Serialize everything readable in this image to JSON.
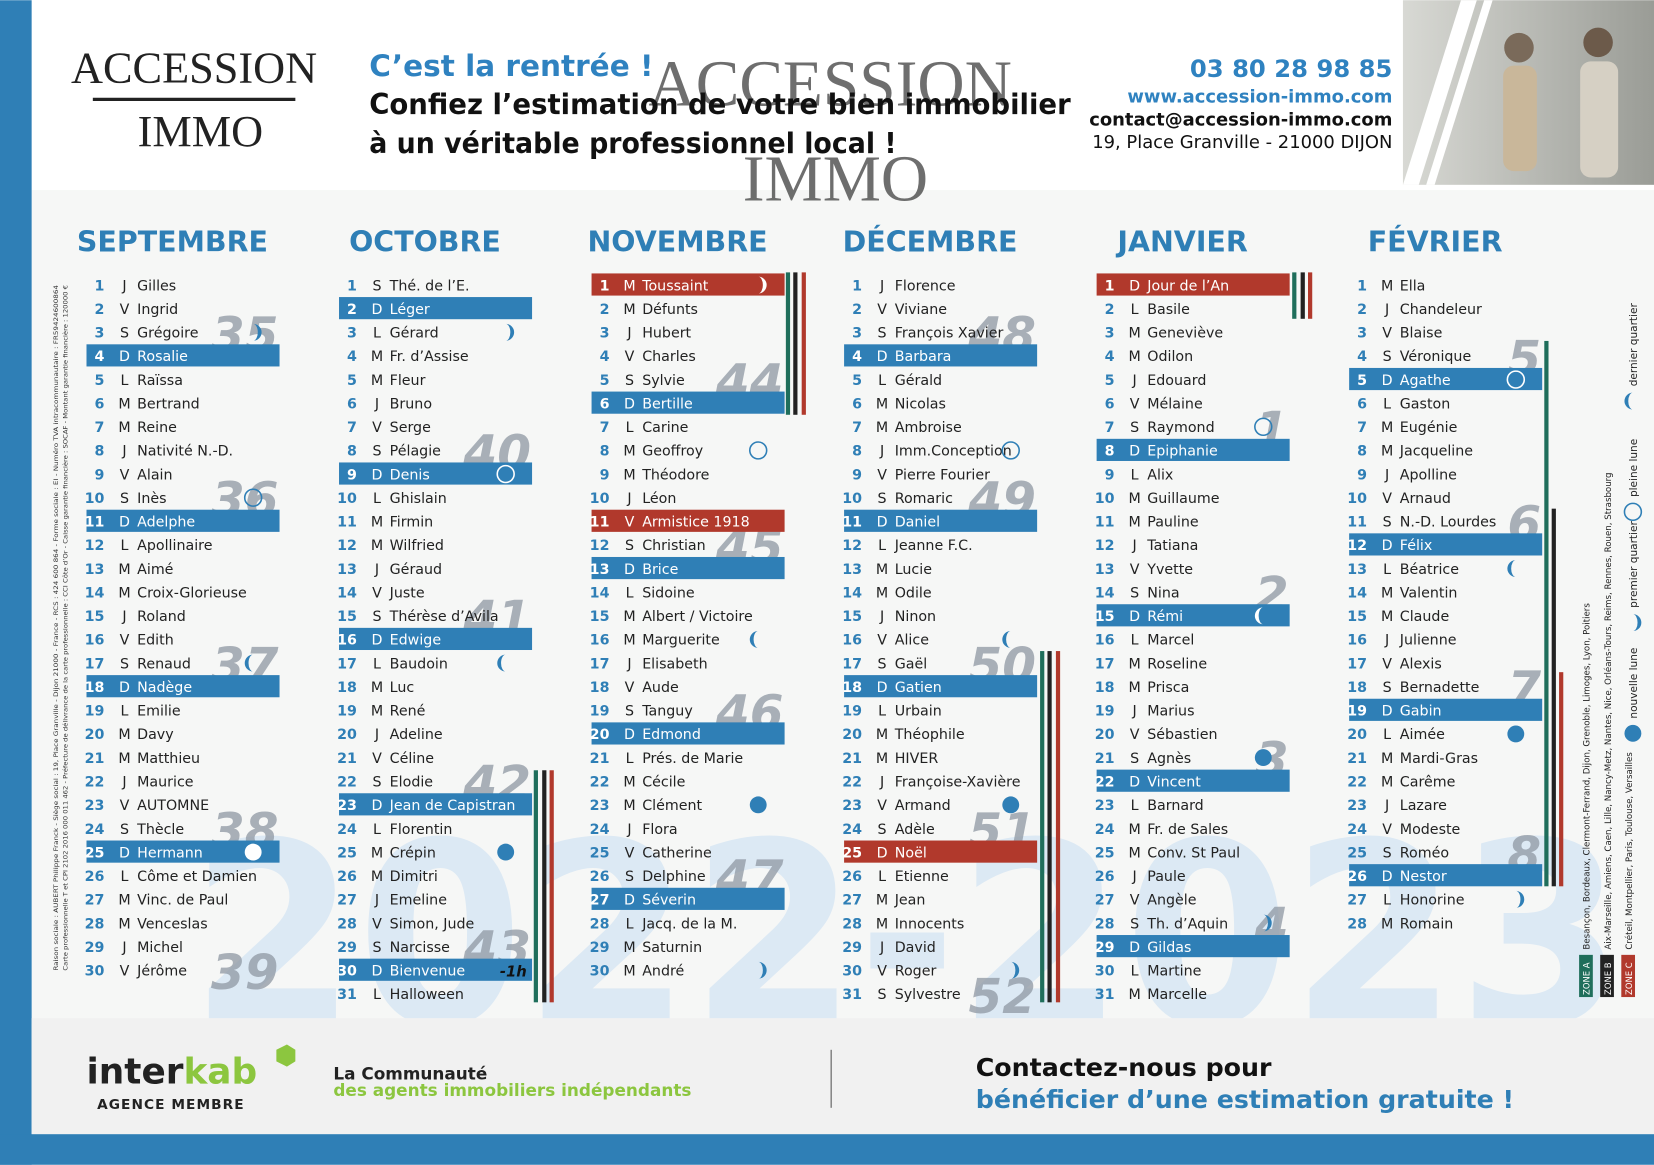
{
  "header": {
    "logo": [
      "ACCESSION",
      "IMMO"
    ],
    "headline": "C’est la rentrée !",
    "lines": [
      "Confiez l’estimation de votre bien immobilier",
      "à un véritable professionnel local !"
    ],
    "phone": "03 80 28 98 85",
    "website": "www.accession-immo.com",
    "email": "contact@accession-immo.com",
    "address": "19, Place Granville - 21000 DIJON"
  },
  "watermark": "2022-2023",
  "highlight_colors": {
    "sunday": "#2f7fb6",
    "holiday": "#b1392c"
  },
  "months": [
    {
      "name": "SEPTEMBRE",
      "weeks": [
        35,
        36,
        37,
        38,
        39
      ],
      "days": [
        [
          1,
          "J",
          "Gilles"
        ],
        [
          2,
          "V",
          "Ingrid"
        ],
        [
          3,
          "S",
          "Grégoire",
          null,
          "fq"
        ],
        [
          4,
          "D",
          "Rosalie"
        ],
        [
          5,
          "L",
          "Raïssa"
        ],
        [
          6,
          "M",
          "Bertrand"
        ],
        [
          7,
          "M",
          "Reine"
        ],
        [
          8,
          "J",
          "Nativité N.-D."
        ],
        [
          9,
          "V",
          "Alain"
        ],
        [
          10,
          "S",
          "Inès",
          null,
          "full"
        ],
        [
          11,
          "D",
          "Adelphe"
        ],
        [
          12,
          "L",
          "Apollinaire"
        ],
        [
          13,
          "M",
          "Aimé"
        ],
        [
          14,
          "M",
          "Croix-Glorieuse"
        ],
        [
          15,
          "J",
          "Roland"
        ],
        [
          16,
          "V",
          "Edith"
        ],
        [
          17,
          "S",
          "Renaud",
          null,
          "lq"
        ],
        [
          18,
          "D",
          "Nadège"
        ],
        [
          19,
          "L",
          "Emilie"
        ],
        [
          20,
          "M",
          "Davy"
        ],
        [
          21,
          "M",
          "Matthieu"
        ],
        [
          22,
          "J",
          "Maurice"
        ],
        [
          23,
          "V",
          "AUTOMNE"
        ],
        [
          24,
          "S",
          "Thècle"
        ],
        [
          25,
          "D",
          "Hermann",
          null,
          "new"
        ],
        [
          26,
          "L",
          "Côme et Damien"
        ],
        [
          27,
          "M",
          "Vinc. de Paul"
        ],
        [
          28,
          "M",
          "Venceslas"
        ],
        [
          29,
          "J",
          "Michel"
        ],
        [
          30,
          "V",
          "Jérôme"
        ]
      ]
    },
    {
      "name": "OCTOBRE",
      "weeks": [
        40,
        41,
        42,
        43
      ],
      "days": [
        [
          1,
          "S",
          "Thé. de l’E."
        ],
        [
          2,
          "D",
          "Léger"
        ],
        [
          3,
          "L",
          "Gérard",
          null,
          "fq"
        ],
        [
          4,
          "M",
          "Fr. d’Assise"
        ],
        [
          5,
          "M",
          "Fleur"
        ],
        [
          6,
          "J",
          "Bruno"
        ],
        [
          7,
          "V",
          "Serge"
        ],
        [
          8,
          "S",
          "Pélagie"
        ],
        [
          9,
          "D",
          "Denis",
          null,
          "full"
        ],
        [
          10,
          "L",
          "Ghislain"
        ],
        [
          11,
          "M",
          "Firmin"
        ],
        [
          12,
          "M",
          "Wilfried"
        ],
        [
          13,
          "J",
          "Géraud"
        ],
        [
          14,
          "V",
          "Juste"
        ],
        [
          15,
          "S",
          "Thérèse d’Avila"
        ],
        [
          16,
          "D",
          "Edwige"
        ],
        [
          17,
          "L",
          "Baudoin",
          null,
          "lq"
        ],
        [
          18,
          "M",
          "Luc"
        ],
        [
          19,
          "M",
          "René"
        ],
        [
          20,
          "J",
          "Adeline"
        ],
        [
          21,
          "V",
          "Céline"
        ],
        [
          22,
          "S",
          "Elodie"
        ],
        [
          23,
          "D",
          "Jean de Capistran"
        ],
        [
          24,
          "L",
          "Florentin"
        ],
        [
          25,
          "M",
          "Crépin",
          null,
          "new"
        ],
        [
          26,
          "M",
          "Dimitri"
        ],
        [
          27,
          "J",
          "Emeline"
        ],
        [
          28,
          "V",
          "Simon, Jude"
        ],
        [
          29,
          "S",
          "Narcisse"
        ],
        [
          30,
          "D",
          "Bienvenue",
          null,
          null,
          "-1h"
        ],
        [
          31,
          "L",
          "Halloween"
        ]
      ]
    },
    {
      "name": "NOVEMBRE",
      "weeks": [
        44,
        45,
        46,
        47
      ],
      "days": [
        [
          1,
          "M",
          "Toussaint",
          "holiday",
          "fq"
        ],
        [
          2,
          "M",
          "Défunts"
        ],
        [
          3,
          "J",
          "Hubert"
        ],
        [
          4,
          "V",
          "Charles"
        ],
        [
          5,
          "S",
          "Sylvie"
        ],
        [
          6,
          "D",
          "Bertille"
        ],
        [
          7,
          "L",
          "Carine"
        ],
        [
          8,
          "M",
          "Geoffroy",
          null,
          "full"
        ],
        [
          9,
          "M",
          "Théodore"
        ],
        [
          10,
          "J",
          "Léon"
        ],
        [
          11,
          "V",
          "Armistice 1918",
          "holiday"
        ],
        [
          12,
          "S",
          "Christian"
        ],
        [
          13,
          "D",
          "Brice"
        ],
        [
          14,
          "L",
          "Sidoine"
        ],
        [
          15,
          "M",
          "Albert / Victoire"
        ],
        [
          16,
          "M",
          "Marguerite",
          null,
          "lq"
        ],
        [
          17,
          "J",
          "Elisabeth"
        ],
        [
          18,
          "V",
          "Aude"
        ],
        [
          19,
          "S",
          "Tanguy"
        ],
        [
          20,
          "D",
          "Edmond"
        ],
        [
          21,
          "L",
          "Prés. de Marie"
        ],
        [
          22,
          "M",
          "Cécile"
        ],
        [
          23,
          "M",
          "Clément",
          null,
          "new"
        ],
        [
          24,
          "J",
          "Flora"
        ],
        [
          25,
          "V",
          "Catherine"
        ],
        [
          26,
          "S",
          "Delphine"
        ],
        [
          27,
          "D",
          "Séverin"
        ],
        [
          28,
          "L",
          "Jacq. de la M."
        ],
        [
          29,
          "M",
          "Saturnin"
        ],
        [
          30,
          "M",
          "André",
          null,
          "fq"
        ]
      ]
    },
    {
      "name": "DÉCEMBRE",
      "weeks": [
        48,
        49,
        50,
        51,
        52
      ],
      "days": [
        [
          1,
          "J",
          "Florence"
        ],
        [
          2,
          "V",
          "Viviane"
        ],
        [
          3,
          "S",
          "François Xavier"
        ],
        [
          4,
          "D",
          "Barbara"
        ],
        [
          5,
          "L",
          "Gérald"
        ],
        [
          6,
          "M",
          "Nicolas"
        ],
        [
          7,
          "M",
          "Ambroise"
        ],
        [
          8,
          "J",
          "Imm.Conception",
          null,
          "full"
        ],
        [
          9,
          "V",
          "Pierre Fourier"
        ],
        [
          10,
          "S",
          "Romaric"
        ],
        [
          11,
          "D",
          "Daniel"
        ],
        [
          12,
          "L",
          "Jeanne F.C."
        ],
        [
          13,
          "M",
          "Lucie"
        ],
        [
          14,
          "M",
          "Odile"
        ],
        [
          15,
          "J",
          "Ninon"
        ],
        [
          16,
          "V",
          "Alice",
          null,
          "lq"
        ],
        [
          17,
          "S",
          "Gaël"
        ],
        [
          18,
          "D",
          "Gatien"
        ],
        [
          19,
          "L",
          "Urbain"
        ],
        [
          20,
          "M",
          "Théophile"
        ],
        [
          21,
          "M",
          "HIVER"
        ],
        [
          22,
          "J",
          "Françoise-Xavière"
        ],
        [
          23,
          "V",
          "Armand",
          null,
          "new"
        ],
        [
          24,
          "S",
          "Adèle"
        ],
        [
          25,
          "D",
          "Noël",
          "holiday"
        ],
        [
          26,
          "L",
          "Etienne"
        ],
        [
          27,
          "M",
          "Jean"
        ],
        [
          28,
          "M",
          "Innocents"
        ],
        [
          29,
          "J",
          "David"
        ],
        [
          30,
          "V",
          "Roger",
          null,
          "fq"
        ],
        [
          31,
          "S",
          "Sylvestre"
        ]
      ]
    },
    {
      "name": "JANVIER",
      "weeks": [
        1,
        2,
        3,
        4
      ],
      "days": [
        [
          1,
          "D",
          "Jour de l’An",
          "holiday"
        ],
        [
          2,
          "L",
          "Basile"
        ],
        [
          3,
          "M",
          "Geneviève"
        ],
        [
          4,
          "M",
          "Odilon"
        ],
        [
          5,
          "J",
          "Edouard"
        ],
        [
          6,
          "V",
          "Mélaine"
        ],
        [
          7,
          "S",
          "Raymond",
          null,
          "full"
        ],
        [
          8,
          "D",
          "Epiphanie"
        ],
        [
          9,
          "L",
          "Alix"
        ],
        [
          10,
          "M",
          "Guillaume"
        ],
        [
          11,
          "M",
          "Pauline"
        ],
        [
          12,
          "J",
          "Tatiana"
        ],
        [
          13,
          "V",
          "Yvette"
        ],
        [
          14,
          "S",
          "Nina"
        ],
        [
          15,
          "D",
          "Rémi",
          null,
          "lq"
        ],
        [
          16,
          "L",
          "Marcel"
        ],
        [
          17,
          "M",
          "Roseline"
        ],
        [
          18,
          "M",
          "Prisca"
        ],
        [
          19,
          "J",
          "Marius"
        ],
        [
          20,
          "V",
          "Sébastien"
        ],
        [
          21,
          "S",
          "Agnès",
          null,
          "new"
        ],
        [
          22,
          "D",
          "Vincent"
        ],
        [
          23,
          "L",
          "Barnard"
        ],
        [
          24,
          "M",
          "Fr. de Sales"
        ],
        [
          25,
          "M",
          "Conv. St Paul"
        ],
        [
          26,
          "J",
          "Paule"
        ],
        [
          27,
          "V",
          "Angèle"
        ],
        [
          28,
          "S",
          "Th. d’Aquin",
          null,
          "fq"
        ],
        [
          29,
          "D",
          "Gildas"
        ],
        [
          30,
          "L",
          "Martine"
        ],
        [
          31,
          "M",
          "Marcelle"
        ]
      ]
    },
    {
      "name": "FÉVRIER",
      "weeks": [
        5,
        6,
        7,
        8
      ],
      "days": [
        [
          1,
          "M",
          "Ella"
        ],
        [
          2,
          "J",
          "Chandeleur"
        ],
        [
          3,
          "V",
          "Blaise"
        ],
        [
          4,
          "S",
          "Véronique"
        ],
        [
          5,
          "D",
          "Agathe",
          null,
          "full"
        ],
        [
          6,
          "L",
          "Gaston"
        ],
        [
          7,
          "M",
          "Eugénie"
        ],
        [
          8,
          "M",
          "Jacqueline"
        ],
        [
          9,
          "J",
          "Apolline"
        ],
        [
          10,
          "V",
          "Arnaud"
        ],
        [
          11,
          "S",
          "N.-D. Lourdes"
        ],
        [
          12,
          "D",
          "Félix"
        ],
        [
          13,
          "L",
          "Béatrice",
          null,
          "lq"
        ],
        [
          14,
          "M",
          "Valentin"
        ],
        [
          15,
          "M",
          "Claude"
        ],
        [
          16,
          "J",
          "Julienne"
        ],
        [
          17,
          "V",
          "Alexis"
        ],
        [
          18,
          "S",
          "Bernadette"
        ],
        [
          19,
          "D",
          "Gabin"
        ],
        [
          20,
          "L",
          "Aimée",
          null,
          "new"
        ],
        [
          21,
          "M",
          "Mardi-Gras"
        ],
        [
          22,
          "M",
          "Carême"
        ],
        [
          23,
          "J",
          "Lazare"
        ],
        [
          24,
          "V",
          "Modeste"
        ],
        [
          25,
          "S",
          "Roméo"
        ],
        [
          26,
          "D",
          "Nestor"
        ],
        [
          27,
          "L",
          "Honorine",
          null,
          "fq"
        ],
        [
          28,
          "M",
          "Romain"
        ]
      ]
    }
  ],
  "legend": {
    "moons": [
      {
        "type": "lq",
        "label": "dernier quartier"
      },
      {
        "type": "full",
        "label": "pleine lune"
      },
      {
        "type": "fq",
        "label": "premier quartier"
      },
      {
        "type": "new",
        "label": "nouvelle lune"
      }
    ],
    "zones": [
      {
        "name": "ZONE A",
        "color": "#1f6e5b",
        "cities": "Besançon, Bordeaux, Clermont-Ferrand, Dijon, Grenoble, Limoges, Lyon, Poitiers"
      },
      {
        "name": "ZONE B",
        "color": "#222222",
        "cities": "Aix-Marseille, Amiens, Caen, Lille, Nancy-Metz, Nantes, Nice, Orléans-Tours, Reims, Rennes, Rouen, Strasbourg"
      },
      {
        "name": "ZONE C",
        "color": "#b1392c",
        "cities": "Créteil, Montpellier, Paris, Toulouse, Versailles"
      }
    ]
  },
  "legal": [
    "Raison sociale : AUBERT Philippe Franck - Siège social : 19, Place Granville - Dijon 21000 - France - RCS : 424 600 864 - Forme sociale : EI - Numéro TVA intracommunautaire : FR59424600864",
    "Carte professionnelle T et CPI 2102 2016 000 011 462 - Préfecture de délivrance de la carte professionnelle : CCI Côte d’Or - Caisse garantie financière : SOCAF - Montant garantie financière : 120000 €"
  ],
  "footer": {
    "brand": [
      "inter",
      "kab"
    ],
    "member": "AGENCE MEMBRE",
    "tagline": [
      "La Communauté",
      "des agents immobiliers indépendants"
    ],
    "cta": [
      "Contactez-nous pour",
      "bénéficier d’une estimation gratuite !"
    ]
  }
}
